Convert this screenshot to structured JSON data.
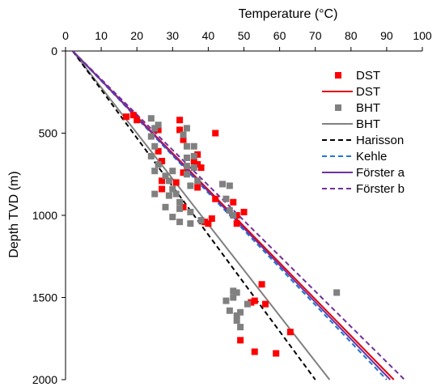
{
  "chart_data": {
    "type": "scatter",
    "title": "",
    "xlabel": "Temperature (°C)",
    "ylabel": "Depth TVD (m)",
    "xlim": [
      0,
      100
    ],
    "ylim": [
      0,
      2000
    ],
    "y_inverted": true,
    "x_axis_position": "top",
    "x_ticks": [
      0,
      10,
      20,
      30,
      40,
      50,
      60,
      70,
      80,
      90,
      100
    ],
    "y_ticks": [
      0,
      500,
      1000,
      1500,
      2000
    ],
    "grid": false,
    "legend_position": "right",
    "series": [
      {
        "name": "DST",
        "kind": "points",
        "marker": "square",
        "color": "#ff0000",
        "points": [
          [
            17,
            400
          ],
          [
            19,
            390
          ],
          [
            20,
            420
          ],
          [
            26,
            480
          ],
          [
            26,
            610
          ],
          [
            27,
            670
          ],
          [
            27,
            790
          ],
          [
            27,
            840
          ],
          [
            31,
            800
          ],
          [
            32,
            420
          ],
          [
            32,
            480
          ],
          [
            33,
            540
          ],
          [
            33,
            740
          ],
          [
            33,
            950
          ],
          [
            36,
            670
          ],
          [
            37,
            630
          ],
          [
            37,
            690
          ],
          [
            38,
            710
          ],
          [
            37,
            830
          ],
          [
            39,
            1040
          ],
          [
            40,
            1050
          ],
          [
            41,
            1020
          ],
          [
            42,
            500
          ],
          [
            42,
            900
          ],
          [
            47,
            920
          ],
          [
            48,
            1000
          ],
          [
            48,
            1050
          ],
          [
            50,
            980
          ],
          [
            52,
            1530
          ],
          [
            53,
            1520
          ],
          [
            55,
            1420
          ],
          [
            56,
            1540
          ],
          [
            49,
            1760
          ],
          [
            53,
            1830
          ],
          [
            59,
            1840
          ],
          [
            63,
            1710
          ]
        ]
      },
      {
        "name": "DST",
        "kind": "line",
        "color": "#e2000f",
        "dash": "",
        "points": [
          [
            2,
            0
          ],
          [
            92,
            2000
          ]
        ]
      },
      {
        "name": "BHT",
        "kind": "points",
        "marker": "square",
        "color": "#808080",
        "points": [
          [
            24,
            410
          ],
          [
            26,
            450
          ],
          [
            25,
            470
          ],
          [
            24,
            520
          ],
          [
            25,
            580
          ],
          [
            24,
            640
          ],
          [
            26,
            690
          ],
          [
            25,
            730
          ],
          [
            25,
            870
          ],
          [
            28,
            760
          ],
          [
            29,
            790
          ],
          [
            30,
            730
          ],
          [
            30,
            840
          ],
          [
            29,
            880
          ],
          [
            28,
            950
          ],
          [
            30,
            1010
          ],
          [
            31,
            870
          ],
          [
            32,
            920
          ],
          [
            32,
            960
          ],
          [
            32,
            1040
          ],
          [
            33,
            510
          ],
          [
            34,
            470
          ],
          [
            34,
            580
          ],
          [
            34,
            650
          ],
          [
            34,
            700
          ],
          [
            34,
            750
          ],
          [
            35,
            820
          ],
          [
            35,
            980
          ],
          [
            35,
            1050
          ],
          [
            36,
            580
          ],
          [
            36,
            640
          ],
          [
            36,
            710
          ],
          [
            37,
            790
          ],
          [
            38,
            1030
          ],
          [
            44,
            810
          ],
          [
            46,
            820
          ],
          [
            45,
            900
          ],
          [
            46,
            970
          ],
          [
            47,
            1000
          ],
          [
            47,
            1460
          ],
          [
            47,
            1500
          ],
          [
            48,
            1470
          ],
          [
            45,
            1520
          ],
          [
            46,
            1580
          ],
          [
            48,
            1610
          ],
          [
            49,
            1590
          ],
          [
            48,
            1640
          ],
          [
            49,
            1680
          ],
          [
            51,
            1540
          ],
          [
            76,
            1470
          ]
        ]
      },
      {
        "name": "BHT",
        "kind": "line",
        "color": "#808080",
        "dash": "",
        "points": [
          [
            2,
            0
          ],
          [
            74,
            2000
          ]
        ]
      },
      {
        "name": "Harisson",
        "kind": "line",
        "color": "#000000",
        "dash": "6,4",
        "points": [
          [
            2,
            0
          ],
          [
            70,
            2000
          ]
        ]
      },
      {
        "name": "Kehle",
        "kind": "line",
        "color": "#1f77cf",
        "dash": "6,4",
        "points": [
          [
            2,
            0
          ],
          [
            90,
            2000
          ]
        ]
      },
      {
        "name": "Förster a",
        "kind": "line",
        "color": "#7030a0",
        "dash": "",
        "points": [
          [
            2,
            0
          ],
          [
            91,
            2000
          ]
        ]
      },
      {
        "name": "Förster b",
        "kind": "line",
        "color": "#7030a0",
        "dash": "6,4",
        "points": [
          [
            2,
            0
          ],
          [
            95,
            2000
          ]
        ]
      }
    ]
  }
}
